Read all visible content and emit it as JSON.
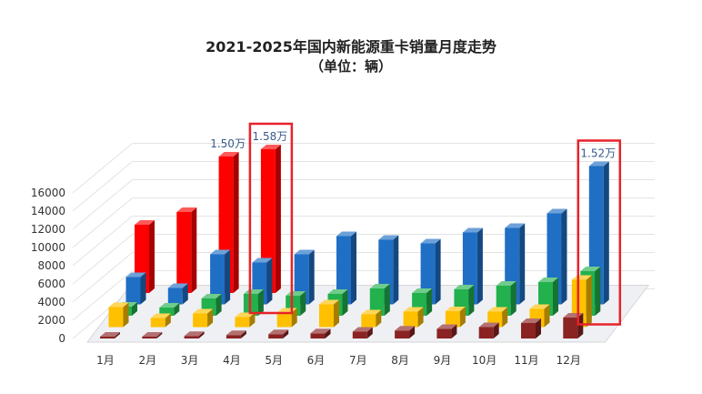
{
  "chart_data": {
    "type": "bar",
    "title": "2021-2025年国内新能源重卡销量月度走势",
    "subtitle": "（单位：辆）",
    "categories": [
      "1月",
      "2月",
      "3月",
      "4月",
      "5月",
      "6月",
      "7月",
      "8月",
      "9月",
      "10月",
      "11月",
      "12月"
    ],
    "ylim": [
      0,
      16000
    ],
    "yticks": [
      0,
      2000,
      4000,
      6000,
      8000,
      10000,
      12000,
      14000,
      16000
    ],
    "grid": true,
    "series": [
      {
        "color": "#8B2323",
        "values": [
          120,
          150,
          280,
          380,
          480,
          570,
          750,
          880,
          1050,
          1250,
          1700,
          2300
        ]
      },
      {
        "color": "#FFC000",
        "values": [
          2200,
          1000,
          1500,
          1100,
          1600,
          2500,
          1400,
          1700,
          1750,
          1700,
          2000,
          5200
        ]
      },
      {
        "color": "#22B14C",
        "values": [
          1000,
          900,
          1900,
          2400,
          2200,
          2400,
          3000,
          2500,
          2900,
          3300,
          3700,
          4900
        ]
      },
      {
        "color": "#1F6FC5",
        "values": [
          3000,
          1800,
          5500,
          4600,
          5500,
          7500,
          7100,
          6700,
          7900,
          8400,
          10000,
          15200
        ]
      },
      {
        "color": "#FF0000",
        "values": [
          7500,
          8900,
          15000,
          15800,
          null,
          null,
          null,
          null,
          null,
          null,
          null,
          null
        ]
      }
    ],
    "annotations": [
      {
        "text": "1.50万",
        "category": "3月",
        "series": 4
      },
      {
        "text": "1.58万",
        "category": "4月",
        "series": 4,
        "highlighted": true
      },
      {
        "text": "1.52万",
        "category": "12月",
        "series": 3,
        "highlighted": true
      }
    ]
  }
}
